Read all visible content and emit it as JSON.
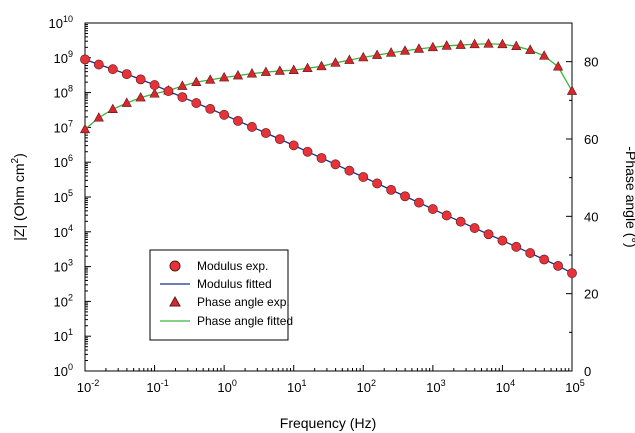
{
  "chart_data": {
    "type": "scatter",
    "x_scale": "log",
    "xlabel": "Frequency (Hz)",
    "xlim": [
      0.01,
      100000
    ],
    "x_ticks": [
      {
        "value": 0.01,
        "base": "10",
        "exp": "-2"
      },
      {
        "value": 0.1,
        "base": "10",
        "exp": "-1"
      },
      {
        "value": 1,
        "base": "10",
        "exp": "0"
      },
      {
        "value": 10,
        "base": "10",
        "exp": "1"
      },
      {
        "value": 100,
        "base": "10",
        "exp": "2"
      },
      {
        "value": 1000,
        "base": "10",
        "exp": "3"
      },
      {
        "value": 10000,
        "base": "10",
        "exp": "4"
      },
      {
        "value": 100000,
        "base": "10",
        "exp": "5"
      }
    ],
    "y_left": {
      "label_pre": "|Z| (Ohm cm",
      "label_sup": "2",
      "label_post": ")",
      "scale": "log",
      "lim": [
        1,
        10000000000
      ],
      "ticks": [
        {
          "value": 1,
          "base": "10",
          "exp": "0"
        },
        {
          "value": 10,
          "base": "10",
          "exp": "1"
        },
        {
          "value": 100,
          "base": "10",
          "exp": "2"
        },
        {
          "value": 1000,
          "base": "10",
          "exp": "3"
        },
        {
          "value": 10000,
          "base": "10",
          "exp": "4"
        },
        {
          "value": 100000,
          "base": "10",
          "exp": "5"
        },
        {
          "value": 1000000,
          "base": "10",
          "exp": "6"
        },
        {
          "value": 10000000,
          "base": "10",
          "exp": "7"
        },
        {
          "value": 100000000,
          "base": "10",
          "exp": "8"
        },
        {
          "value": 1000000000,
          "base": "10",
          "exp": "9"
        },
        {
          "value": 10000000000,
          "base": "10",
          "exp": "10"
        }
      ]
    },
    "y_right": {
      "label": "-Phase angle (°)",
      "lim": [
        0,
        90
      ],
      "ticks": [
        {
          "value": 0,
          "label": "0"
        },
        {
          "value": 20,
          "label": "20"
        },
        {
          "value": 40,
          "label": "40"
        },
        {
          "value": 60,
          "label": "60"
        },
        {
          "value": 80,
          "label": "80"
        }
      ]
    },
    "legend": {
      "placement": "lower-left",
      "entries": [
        {
          "label": "Modulus exp.",
          "marker": "circle"
        },
        {
          "label": "Modulus fitted",
          "marker": "line"
        },
        {
          "label": "Phase angle exp.",
          "marker": "triangle"
        },
        {
          "label": "Phase angle fitted",
          "marker": "line"
        }
      ]
    },
    "grid": false,
    "colors": {
      "modulus_marker": "#e8323a",
      "modulus_fit": "#1a2d8c",
      "phase_marker": "#d9262c",
      "phase_fit": "#3cb43c",
      "marker_edge": "#5a1a1a"
    },
    "series": [
      {
        "name": "Modulus exp.",
        "axis": "left",
        "marker": "circle",
        "x": [
          0.01,
          0.0158,
          0.0251,
          0.0398,
          0.0631,
          0.1,
          0.158,
          0.251,
          0.398,
          0.631,
          1,
          1.58,
          2.51,
          3.98,
          6.31,
          10,
          15.8,
          25.1,
          39.8,
          63.1,
          100,
          158,
          251,
          398,
          631,
          1000,
          1580,
          2510,
          3980,
          6310,
          10000,
          15800,
          25100,
          39800,
          63100,
          100000
        ],
        "y": [
          900000000,
          640000000,
          470000000,
          340000000,
          240000000,
          165000000,
          110000000,
          74000000,
          50000000,
          34000000,
          23000000,
          15400000,
          10300000,
          6900000,
          4600000,
          3050000,
          2000000,
          1320000,
          870000,
          570000,
          375000,
          245000,
          160000,
          105000,
          69000,
          45000,
          29500,
          19500,
          12800,
          8500,
          5600,
          3700,
          2450,
          1600,
          1050,
          650
        ]
      },
      {
        "name": "Modulus fitted",
        "axis": "left",
        "marker": "line",
        "x": [
          0.01,
          0.0158,
          0.0251,
          0.0398,
          0.0631,
          0.1,
          0.158,
          0.251,
          0.398,
          0.631,
          1,
          1.58,
          2.51,
          3.98,
          6.31,
          10,
          15.8,
          25.1,
          39.8,
          63.1,
          100,
          158,
          251,
          398,
          631,
          1000,
          1580,
          2510,
          3980,
          6310,
          10000,
          15800,
          25100,
          39800,
          63100,
          100000
        ],
        "y": [
          900000000,
          640000000,
          470000000,
          340000000,
          240000000,
          165000000,
          110000000,
          74000000,
          50000000,
          34000000,
          23000000,
          15400000,
          10300000,
          6900000,
          4600000,
          3050000,
          2000000,
          1320000,
          870000,
          570000,
          375000,
          245000,
          160000,
          105000,
          69000,
          45000,
          29500,
          19500,
          12800,
          8500,
          5600,
          3700,
          2450,
          1600,
          1050,
          650
        ]
      },
      {
        "name": "Phase angle exp.",
        "axis": "right",
        "marker": "triangle",
        "x": [
          0.01,
          0.0158,
          0.0251,
          0.0398,
          0.0631,
          0.1,
          0.158,
          0.251,
          0.398,
          0.631,
          1,
          1.58,
          2.51,
          3.98,
          6.31,
          10,
          15.8,
          25.1,
          39.8,
          63.1,
          100,
          158,
          251,
          398,
          631,
          1000,
          1580,
          2510,
          3980,
          6310,
          10000,
          15800,
          25100,
          39800,
          63100,
          100000
        ],
        "y": [
          62.5,
          65.5,
          67.7,
          69.3,
          70.7,
          71.7,
          72.5,
          73.7,
          74.7,
          75.3,
          75.9,
          76.4,
          76.9,
          77.3,
          77.6,
          77.8,
          78.3,
          78.8,
          79.7,
          80.4,
          81.1,
          81.7,
          82.3,
          82.8,
          83.3,
          83.7,
          84.1,
          84.3,
          84.5,
          84.6,
          84.5,
          84.0,
          83.0,
          81.5,
          78.7,
          72.4
        ]
      },
      {
        "name": "Phase angle fitted",
        "axis": "right",
        "marker": "line",
        "x": [
          0.01,
          0.0158,
          0.0251,
          0.0398,
          0.0631,
          0.1,
          0.158,
          0.251,
          0.398,
          0.631,
          1,
          1.58,
          2.51,
          3.98,
          6.31,
          10,
          15.8,
          25.1,
          39.8,
          63.1,
          100,
          158,
          251,
          398,
          631,
          1000,
          1580,
          2510,
          3980,
          6310,
          10000,
          15800,
          25100,
          39800,
          63100,
          100000
        ],
        "y": [
          62.5,
          65.5,
          67.7,
          69.3,
          70.7,
          71.7,
          72.5,
          73.7,
          74.7,
          75.3,
          75.9,
          76.4,
          76.9,
          77.3,
          77.6,
          77.8,
          78.3,
          78.8,
          79.7,
          80.4,
          81.1,
          81.7,
          82.3,
          82.8,
          83.3,
          83.7,
          84.1,
          84.3,
          84.5,
          84.6,
          84.5,
          84.0,
          83.0,
          81.5,
          78.7,
          72.4
        ]
      }
    ]
  }
}
